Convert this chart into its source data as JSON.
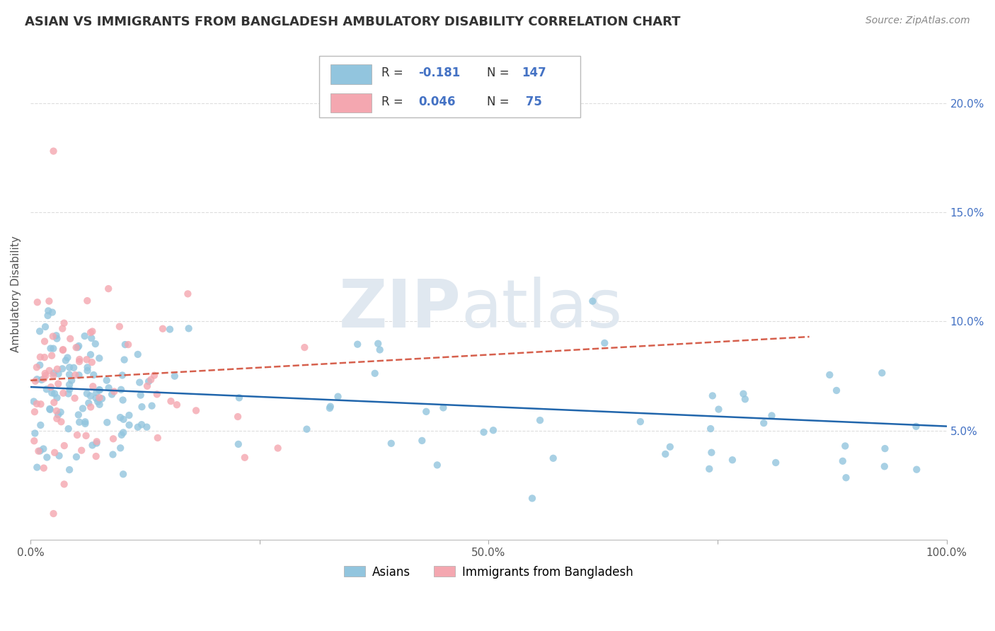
{
  "title": "ASIAN VS IMMIGRANTS FROM BANGLADESH AMBULATORY DISABILITY CORRELATION CHART",
  "source": "Source: ZipAtlas.com",
  "ylabel": "Ambulatory Disability",
  "xlim": [
    0.0,
    1.0
  ],
  "ylim": [
    0.0,
    0.225
  ],
  "legend_label_blue": "Asians",
  "legend_label_pink": "Immigrants from Bangladesh",
  "R_blue": -0.181,
  "N_blue": 147,
  "R_pink": 0.046,
  "N_pink": 75,
  "color_blue": "#92C5DE",
  "color_pink": "#F4A7B0",
  "color_line_blue": "#2166AC",
  "color_line_pink": "#D6604D",
  "title_fontsize": 13,
  "axis_label_fontsize": 11,
  "tick_fontsize": 11,
  "source_fontsize": 10,
  "legend_fontsize": 12,
  "background_color": "#FFFFFF",
  "grid_color": "#DDDDDD"
}
